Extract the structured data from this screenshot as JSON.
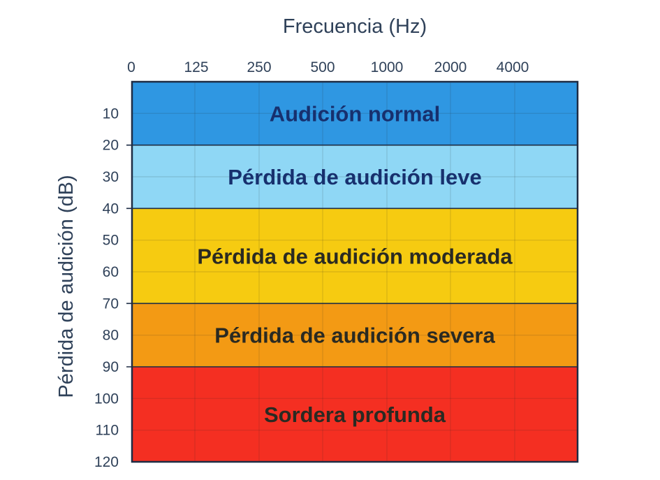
{
  "chart_data": {
    "type": "heatmap",
    "title": "",
    "xlabel": "Frecuencia (Hz)",
    "ylabel": "Pérdida de audición (dB)",
    "x_ticks": [
      "0",
      "125",
      "250",
      "500",
      "1000",
      "2000",
      "4000"
    ],
    "y_ticks": [
      10,
      20,
      30,
      40,
      50,
      60,
      70,
      80,
      90,
      100,
      110,
      120
    ],
    "ylim": [
      0,
      120
    ],
    "y_inverted": true,
    "grid": true,
    "bands": [
      {
        "label": "Audición normal",
        "y_from": 0,
        "y_to": 20,
        "color": "#2f97e2",
        "text_color": "#17306e"
      },
      {
        "label": "Pérdida de audición leve",
        "y_from": 20,
        "y_to": 40,
        "color": "#8fd7f5",
        "text_color": "#17306e"
      },
      {
        "label": "Pérdida de audición moderada",
        "y_from": 40,
        "y_to": 70,
        "color": "#f6cb11",
        "text_color": "#2a2a22"
      },
      {
        "label": "Pérdida de audición severa",
        "y_from": 70,
        "y_to": 90,
        "color": "#f39a14",
        "text_color": "#2a2a22"
      },
      {
        "label": "Sordera profunda",
        "y_from": 90,
        "y_to": 120,
        "color": "#f42f22",
        "text_color": "#2a2a22"
      }
    ]
  },
  "colors": {
    "axis_text": "#2f4159",
    "frame": "#1e2c44",
    "grid": "rgba(40,40,40,0.13)"
  }
}
